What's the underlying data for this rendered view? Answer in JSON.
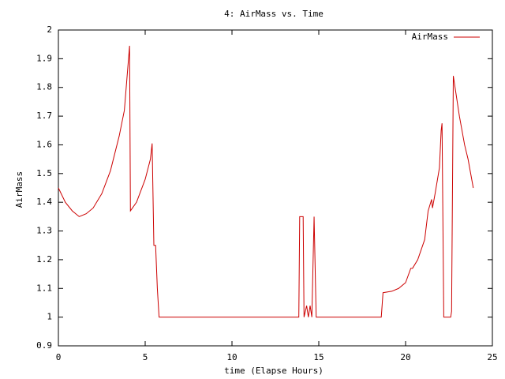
{
  "chart_data": {
    "type": "line",
    "title": "4: AirMass vs. Time",
    "x_label": "time (Elapse Hours)",
    "y_label": "AirMass",
    "xlim": [
      0,
      25
    ],
    "xticks": [
      0,
      5,
      10,
      15,
      20,
      25
    ],
    "ylim": [
      0.9,
      2
    ],
    "yticks": [
      0.9,
      1,
      1.1,
      1.2,
      1.3,
      1.4,
      1.5,
      1.6,
      1.7,
      1.8,
      1.9,
      2
    ],
    "legend": "top-right",
    "x": [
      0,
      0.4,
      0.8,
      1.2,
      1.6,
      2,
      2.5,
      3,
      3.5,
      3.8,
      4.1,
      4.15,
      4.5,
      5,
      5.3,
      5.4,
      5.5,
      5.6,
      5.7,
      5.8,
      13.85,
      13.9,
      14.1,
      14.15,
      14.3,
      14.4,
      14.5,
      14.6,
      14.73,
      14.85,
      18.6,
      18.7,
      19.2,
      19.6,
      20,
      20.3,
      20.4,
      20.7,
      21.1,
      21.3,
      21.5,
      21.55,
      21.7,
      21.95,
      22.05,
      22.1,
      22.2,
      22.6,
      22.65,
      22.75,
      22.9,
      23.1,
      23.4,
      23.6,
      23.9
    ],
    "series": [
      {
        "name": "AirMass",
        "color": "#cc0000",
        "values": [
          1.45,
          1.4,
          1.37,
          1.35,
          1.36,
          1.38,
          1.43,
          1.51,
          1.63,
          1.72,
          1.945,
          1.37,
          1.4,
          1.48,
          1.55,
          1.605,
          1.25,
          1.25,
          1.1,
          1,
          1,
          1.35,
          1.35,
          1,
          1.04,
          1,
          1.04,
          1,
          1.35,
          1,
          1,
          1.085,
          1.09,
          1.1,
          1.12,
          1.17,
          1.17,
          1.2,
          1.27,
          1.37,
          1.41,
          1.38,
          1.43,
          1.52,
          1.65,
          1.675,
          1,
          1,
          1.02,
          1.84,
          1.78,
          1.7,
          1.6,
          1.55,
          1.45
        ]
      }
    ]
  }
}
